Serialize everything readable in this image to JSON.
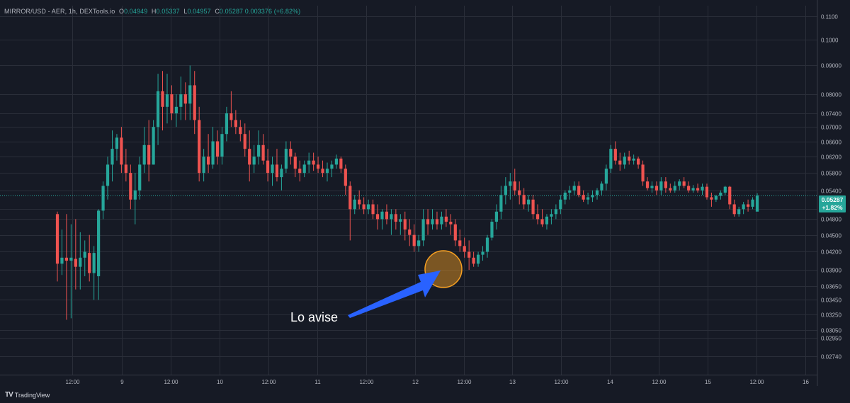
{
  "legend": {
    "symbol": "MIRROR/USD - AER, 1h, DEXTools.io",
    "open_label": "O",
    "open": "0.04949",
    "high_label": "H",
    "high": "0.05337",
    "low_label": "L",
    "low": "0.04957",
    "close_label": "C",
    "close": "0.05287",
    "change": "0.003376 (+6.82%)"
  },
  "last_price": {
    "value": "0.05287",
    "change": "+1.82%"
  },
  "annotation": {
    "text": "Lo avise"
  },
  "branding": {
    "logo": "TV",
    "name": "TradingView"
  },
  "colors": {
    "background": "#161a25",
    "up": "#26a69a",
    "down": "#ef5350",
    "grid": "#2a2e39",
    "arrow": "#2962ff",
    "circle": "#f7a021"
  },
  "chart_data": {
    "type": "candlestick",
    "title": "",
    "xlabel": "",
    "ylabel": "",
    "ylim": [
      0.026,
      0.112
    ],
    "y_scale": "log",
    "grid": true,
    "y_ticks": [
      "0.1100",
      "0.1000",
      "0.09000",
      "0.08000",
      "0.07400",
      "0.07000",
      "0.06600",
      "0.06200",
      "0.05800",
      "0.05400",
      "0.05000",
      "0.04800",
      "0.04500",
      "0.04200",
      "0.03900",
      "0.03650",
      "0.03450",
      "0.03250",
      "0.03050",
      "0.02950",
      "0.02740"
    ],
    "x_ticks": [
      "12:00",
      "9",
      "12:00",
      "10",
      "12:00",
      "11",
      "12:00",
      "12",
      "12:00",
      "13",
      "12:00",
      "14",
      "12:00",
      "15",
      "12:00",
      "16"
    ],
    "candles": [
      {
        "o": 0.049,
        "h": 0.0495,
        "l": 0.0372,
        "c": 0.04
      },
      {
        "o": 0.04,
        "h": 0.046,
        "l": 0.0382,
        "c": 0.041
      },
      {
        "o": 0.041,
        "h": 0.049,
        "l": 0.0318,
        "c": 0.0405
      },
      {
        "o": 0.0405,
        "h": 0.047,
        "l": 0.032,
        "c": 0.041
      },
      {
        "o": 0.0408,
        "h": 0.048,
        "l": 0.036,
        "c": 0.0395
      },
      {
        "o": 0.0395,
        "h": 0.0455,
        "l": 0.036,
        "c": 0.041
      },
      {
        "o": 0.041,
        "h": 0.044,
        "l": 0.038,
        "c": 0.042
      },
      {
        "o": 0.0418,
        "h": 0.045,
        "l": 0.0372,
        "c": 0.0385
      },
      {
        "o": 0.0385,
        "h": 0.043,
        "l": 0.0345,
        "c": 0.0418
      },
      {
        "o": 0.038,
        "h": 0.05,
        "l": 0.0345,
        "c": 0.0497
      },
      {
        "o": 0.0497,
        "h": 0.056,
        "l": 0.048,
        "c": 0.055
      },
      {
        "o": 0.055,
        "h": 0.062,
        "l": 0.052,
        "c": 0.06
      },
      {
        "o": 0.06,
        "h": 0.069,
        "l": 0.056,
        "c": 0.064
      },
      {
        "o": 0.064,
        "h": 0.068,
        "l": 0.061,
        "c": 0.067
      },
      {
        "o": 0.067,
        "h": 0.07,
        "l": 0.058,
        "c": 0.06
      },
      {
        "o": 0.06,
        "h": 0.064,
        "l": 0.056,
        "c": 0.058
      },
      {
        "o": 0.058,
        "h": 0.06,
        "l": 0.05,
        "c": 0.052
      },
      {
        "o": 0.052,
        "h": 0.058,
        "l": 0.047,
        "c": 0.054
      },
      {
        "o": 0.054,
        "h": 0.062,
        "l": 0.052,
        "c": 0.06
      },
      {
        "o": 0.06,
        "h": 0.07,
        "l": 0.058,
        "c": 0.065
      },
      {
        "o": 0.065,
        "h": 0.072,
        "l": 0.056,
        "c": 0.06
      },
      {
        "o": 0.06,
        "h": 0.072,
        "l": 0.06,
        "c": 0.07
      },
      {
        "o": 0.07,
        "h": 0.087,
        "l": 0.065,
        "c": 0.081
      },
      {
        "o": 0.081,
        "h": 0.088,
        "l": 0.069,
        "c": 0.076
      },
      {
        "o": 0.076,
        "h": 0.087,
        "l": 0.071,
        "c": 0.08
      },
      {
        "o": 0.08,
        "h": 0.083,
        "l": 0.072,
        "c": 0.074
      },
      {
        "o": 0.074,
        "h": 0.08,
        "l": 0.07,
        "c": 0.076
      },
      {
        "o": 0.076,
        "h": 0.086,
        "l": 0.072,
        "c": 0.08
      },
      {
        "o": 0.08,
        "h": 0.084,
        "l": 0.072,
        "c": 0.077
      },
      {
        "o": 0.077,
        "h": 0.09,
        "l": 0.072,
        "c": 0.083
      },
      {
        "o": 0.083,
        "h": 0.088,
        "l": 0.068,
        "c": 0.072
      },
      {
        "o": 0.072,
        "h": 0.076,
        "l": 0.056,
        "c": 0.058
      },
      {
        "o": 0.058,
        "h": 0.064,
        "l": 0.056,
        "c": 0.062
      },
      {
        "o": 0.062,
        "h": 0.068,
        "l": 0.058,
        "c": 0.06
      },
      {
        "o": 0.06,
        "h": 0.07,
        "l": 0.059,
        "c": 0.066
      },
      {
        "o": 0.066,
        "h": 0.069,
        "l": 0.06,
        "c": 0.062
      },
      {
        "o": 0.062,
        "h": 0.07,
        "l": 0.06,
        "c": 0.068
      },
      {
        "o": 0.068,
        "h": 0.076,
        "l": 0.066,
        "c": 0.074
      },
      {
        "o": 0.074,
        "h": 0.081,
        "l": 0.07,
        "c": 0.072
      },
      {
        "o": 0.072,
        "h": 0.075,
        "l": 0.068,
        "c": 0.07
      },
      {
        "o": 0.07,
        "h": 0.072,
        "l": 0.066,
        "c": 0.068
      },
      {
        "o": 0.068,
        "h": 0.071,
        "l": 0.062,
        "c": 0.064
      },
      {
        "o": 0.064,
        "h": 0.069,
        "l": 0.056,
        "c": 0.06
      },
      {
        "o": 0.06,
        "h": 0.065,
        "l": 0.058,
        "c": 0.062
      },
      {
        "o": 0.062,
        "h": 0.069,
        "l": 0.06,
        "c": 0.065
      },
      {
        "o": 0.065,
        "h": 0.068,
        "l": 0.06,
        "c": 0.061
      },
      {
        "o": 0.061,
        "h": 0.064,
        "l": 0.056,
        "c": 0.058
      },
      {
        "o": 0.058,
        "h": 0.062,
        "l": 0.055,
        "c": 0.06
      },
      {
        "o": 0.06,
        "h": 0.064,
        "l": 0.056,
        "c": 0.057
      },
      {
        "o": 0.057,
        "h": 0.06,
        "l": 0.054,
        "c": 0.059
      },
      {
        "o": 0.059,
        "h": 0.066,
        "l": 0.058,
        "c": 0.064
      },
      {
        "o": 0.064,
        "h": 0.066,
        "l": 0.06,
        "c": 0.062
      },
      {
        "o": 0.062,
        "h": 0.063,
        "l": 0.057,
        "c": 0.059
      },
      {
        "o": 0.059,
        "h": 0.061,
        "l": 0.056,
        "c": 0.058
      },
      {
        "o": 0.058,
        "h": 0.061,
        "l": 0.057,
        "c": 0.06
      },
      {
        "o": 0.06,
        "h": 0.063,
        "l": 0.058,
        "c": 0.061
      },
      {
        "o": 0.061,
        "h": 0.063,
        "l": 0.0585,
        "c": 0.06
      },
      {
        "o": 0.06,
        "h": 0.062,
        "l": 0.058,
        "c": 0.059
      },
      {
        "o": 0.059,
        "h": 0.061,
        "l": 0.057,
        "c": 0.058
      },
      {
        "o": 0.058,
        "h": 0.0605,
        "l": 0.056,
        "c": 0.059
      },
      {
        "o": 0.059,
        "h": 0.061,
        "l": 0.057,
        "c": 0.06
      },
      {
        "o": 0.06,
        "h": 0.0625,
        "l": 0.059,
        "c": 0.0615
      },
      {
        "o": 0.0615,
        "h": 0.062,
        "l": 0.058,
        "c": 0.059
      },
      {
        "o": 0.059,
        "h": 0.06,
        "l": 0.053,
        "c": 0.055
      },
      {
        "o": 0.055,
        "h": 0.056,
        "l": 0.044,
        "c": 0.05
      },
      {
        "o": 0.05,
        "h": 0.053,
        "l": 0.049,
        "c": 0.052
      },
      {
        "o": 0.052,
        "h": 0.054,
        "l": 0.05,
        "c": 0.051
      },
      {
        "o": 0.051,
        "h": 0.0525,
        "l": 0.049,
        "c": 0.05
      },
      {
        "o": 0.05,
        "h": 0.052,
        "l": 0.049,
        "c": 0.051
      },
      {
        "o": 0.051,
        "h": 0.052,
        "l": 0.048,
        "c": 0.049
      },
      {
        "o": 0.049,
        "h": 0.051,
        "l": 0.046,
        "c": 0.048
      },
      {
        "o": 0.048,
        "h": 0.05,
        "l": 0.046,
        "c": 0.0495
      },
      {
        "o": 0.0495,
        "h": 0.051,
        "l": 0.047,
        "c": 0.048
      },
      {
        "o": 0.048,
        "h": 0.05,
        "l": 0.045,
        "c": 0.049
      },
      {
        "o": 0.049,
        "h": 0.05,
        "l": 0.046,
        "c": 0.0475
      },
      {
        "o": 0.0475,
        "h": 0.049,
        "l": 0.045,
        "c": 0.048
      },
      {
        "o": 0.048,
        "h": 0.0495,
        "l": 0.044,
        "c": 0.046
      },
      {
        "o": 0.046,
        "h": 0.048,
        "l": 0.043,
        "c": 0.045
      },
      {
        "o": 0.045,
        "h": 0.047,
        "l": 0.042,
        "c": 0.043
      },
      {
        "o": 0.043,
        "h": 0.045,
        "l": 0.042,
        "c": 0.044
      },
      {
        "o": 0.044,
        "h": 0.05,
        "l": 0.043,
        "c": 0.048
      },
      {
        "o": 0.048,
        "h": 0.05,
        "l": 0.045,
        "c": 0.047
      },
      {
        "o": 0.047,
        "h": 0.05,
        "l": 0.046,
        "c": 0.048
      },
      {
        "o": 0.048,
        "h": 0.0495,
        "l": 0.046,
        "c": 0.047
      },
      {
        "o": 0.047,
        "h": 0.0495,
        "l": 0.046,
        "c": 0.0485
      },
      {
        "o": 0.0485,
        "h": 0.05,
        "l": 0.0465,
        "c": 0.0475
      },
      {
        "o": 0.0475,
        "h": 0.049,
        "l": 0.045,
        "c": 0.047
      },
      {
        "o": 0.047,
        "h": 0.048,
        "l": 0.043,
        "c": 0.044
      },
      {
        "o": 0.044,
        "h": 0.046,
        "l": 0.042,
        "c": 0.043
      },
      {
        "o": 0.043,
        "h": 0.0445,
        "l": 0.041,
        "c": 0.042
      },
      {
        "o": 0.042,
        "h": 0.044,
        "l": 0.039,
        "c": 0.041
      },
      {
        "o": 0.041,
        "h": 0.042,
        "l": 0.0395,
        "c": 0.04
      },
      {
        "o": 0.04,
        "h": 0.042,
        "l": 0.0395,
        "c": 0.0415
      },
      {
        "o": 0.0415,
        "h": 0.043,
        "l": 0.0405,
        "c": 0.042
      },
      {
        "o": 0.042,
        "h": 0.045,
        "l": 0.041,
        "c": 0.0445
      },
      {
        "o": 0.0445,
        "h": 0.048,
        "l": 0.044,
        "c": 0.0475
      },
      {
        "o": 0.0475,
        "h": 0.051,
        "l": 0.046,
        "c": 0.0495
      },
      {
        "o": 0.0495,
        "h": 0.055,
        "l": 0.048,
        "c": 0.053
      },
      {
        "o": 0.053,
        "h": 0.057,
        "l": 0.051,
        "c": 0.055
      },
      {
        "o": 0.055,
        "h": 0.058,
        "l": 0.052,
        "c": 0.056
      },
      {
        "o": 0.056,
        "h": 0.059,
        "l": 0.053,
        "c": 0.054
      },
      {
        "o": 0.054,
        "h": 0.056,
        "l": 0.051,
        "c": 0.053
      },
      {
        "o": 0.053,
        "h": 0.0545,
        "l": 0.05,
        "c": 0.051
      },
      {
        "o": 0.051,
        "h": 0.053,
        "l": 0.0495,
        "c": 0.052
      },
      {
        "o": 0.052,
        "h": 0.053,
        "l": 0.048,
        "c": 0.049
      },
      {
        "o": 0.049,
        "h": 0.051,
        "l": 0.047,
        "c": 0.048
      },
      {
        "o": 0.048,
        "h": 0.05,
        "l": 0.0465,
        "c": 0.047
      },
      {
        "o": 0.047,
        "h": 0.049,
        "l": 0.046,
        "c": 0.0485
      },
      {
        "o": 0.0485,
        "h": 0.05,
        "l": 0.047,
        "c": 0.049
      },
      {
        "o": 0.049,
        "h": 0.051,
        "l": 0.048,
        "c": 0.05
      },
      {
        "o": 0.05,
        "h": 0.053,
        "l": 0.049,
        "c": 0.052
      },
      {
        "o": 0.052,
        "h": 0.054,
        "l": 0.051,
        "c": 0.0535
      },
      {
        "o": 0.0535,
        "h": 0.055,
        "l": 0.052,
        "c": 0.054
      },
      {
        "o": 0.054,
        "h": 0.056,
        "l": 0.053,
        "c": 0.055
      },
      {
        "o": 0.055,
        "h": 0.056,
        "l": 0.0525,
        "c": 0.053
      },
      {
        "o": 0.053,
        "h": 0.054,
        "l": 0.0515,
        "c": 0.052
      },
      {
        "o": 0.052,
        "h": 0.0535,
        "l": 0.051,
        "c": 0.0525
      },
      {
        "o": 0.0525,
        "h": 0.054,
        "l": 0.0515,
        "c": 0.053
      },
      {
        "o": 0.053,
        "h": 0.0545,
        "l": 0.052,
        "c": 0.054
      },
      {
        "o": 0.054,
        "h": 0.056,
        "l": 0.053,
        "c": 0.0555
      },
      {
        "o": 0.0555,
        "h": 0.06,
        "l": 0.054,
        "c": 0.059
      },
      {
        "o": 0.059,
        "h": 0.065,
        "l": 0.058,
        "c": 0.064
      },
      {
        "o": 0.064,
        "h": 0.066,
        "l": 0.06,
        "c": 0.061
      },
      {
        "o": 0.061,
        "h": 0.063,
        "l": 0.0585,
        "c": 0.06
      },
      {
        "o": 0.06,
        "h": 0.063,
        "l": 0.059,
        "c": 0.062
      },
      {
        "o": 0.062,
        "h": 0.0635,
        "l": 0.06,
        "c": 0.061
      },
      {
        "o": 0.061,
        "h": 0.0625,
        "l": 0.06,
        "c": 0.0615
      },
      {
        "o": 0.0615,
        "h": 0.062,
        "l": 0.059,
        "c": 0.06
      },
      {
        "o": 0.06,
        "h": 0.061,
        "l": 0.055,
        "c": 0.056
      },
      {
        "o": 0.056,
        "h": 0.057,
        "l": 0.054,
        "c": 0.0545
      },
      {
        "o": 0.0545,
        "h": 0.056,
        "l": 0.0535,
        "c": 0.055
      },
      {
        "o": 0.055,
        "h": 0.056,
        "l": 0.053,
        "c": 0.054
      },
      {
        "o": 0.054,
        "h": 0.057,
        "l": 0.053,
        "c": 0.056
      },
      {
        "o": 0.056,
        "h": 0.057,
        "l": 0.0535,
        "c": 0.0545
      },
      {
        "o": 0.0545,
        "h": 0.0555,
        "l": 0.0535,
        "c": 0.054
      },
      {
        "o": 0.054,
        "h": 0.056,
        "l": 0.0535,
        "c": 0.055
      },
      {
        "o": 0.055,
        "h": 0.0565,
        "l": 0.054,
        "c": 0.056
      },
      {
        "o": 0.056,
        "h": 0.057,
        "l": 0.0545,
        "c": 0.055
      },
      {
        "o": 0.055,
        "h": 0.056,
        "l": 0.0535,
        "c": 0.054
      },
      {
        "o": 0.054,
        "h": 0.0552,
        "l": 0.0535,
        "c": 0.0545
      },
      {
        "o": 0.0545,
        "h": 0.0555,
        "l": 0.0535,
        "c": 0.054
      },
      {
        "o": 0.054,
        "h": 0.0555,
        "l": 0.053,
        "c": 0.0548
      },
      {
        "o": 0.0548,
        "h": 0.0555,
        "l": 0.052,
        "c": 0.0525
      },
      {
        "o": 0.0525,
        "h": 0.0535,
        "l": 0.0505,
        "c": 0.052
      },
      {
        "o": 0.052,
        "h": 0.053,
        "l": 0.0515,
        "c": 0.0528
      },
      {
        "o": 0.0528,
        "h": 0.054,
        "l": 0.052,
        "c": 0.0535
      },
      {
        "o": 0.0535,
        "h": 0.055,
        "l": 0.053,
        "c": 0.0548
      },
      {
        "o": 0.0548,
        "h": 0.055,
        "l": 0.05,
        "c": 0.051
      },
      {
        "o": 0.051,
        "h": 0.052,
        "l": 0.0485,
        "c": 0.049
      },
      {
        "o": 0.049,
        "h": 0.0505,
        "l": 0.0485,
        "c": 0.05
      },
      {
        "o": 0.05,
        "h": 0.0515,
        "l": 0.049,
        "c": 0.051
      },
      {
        "o": 0.051,
        "h": 0.052,
        "l": 0.0495,
        "c": 0.0505
      },
      {
        "o": 0.0505,
        "h": 0.0525,
        "l": 0.05,
        "c": 0.052
      },
      {
        "o": 0.0495,
        "h": 0.05337,
        "l": 0.04957,
        "c": 0.05287
      }
    ]
  }
}
